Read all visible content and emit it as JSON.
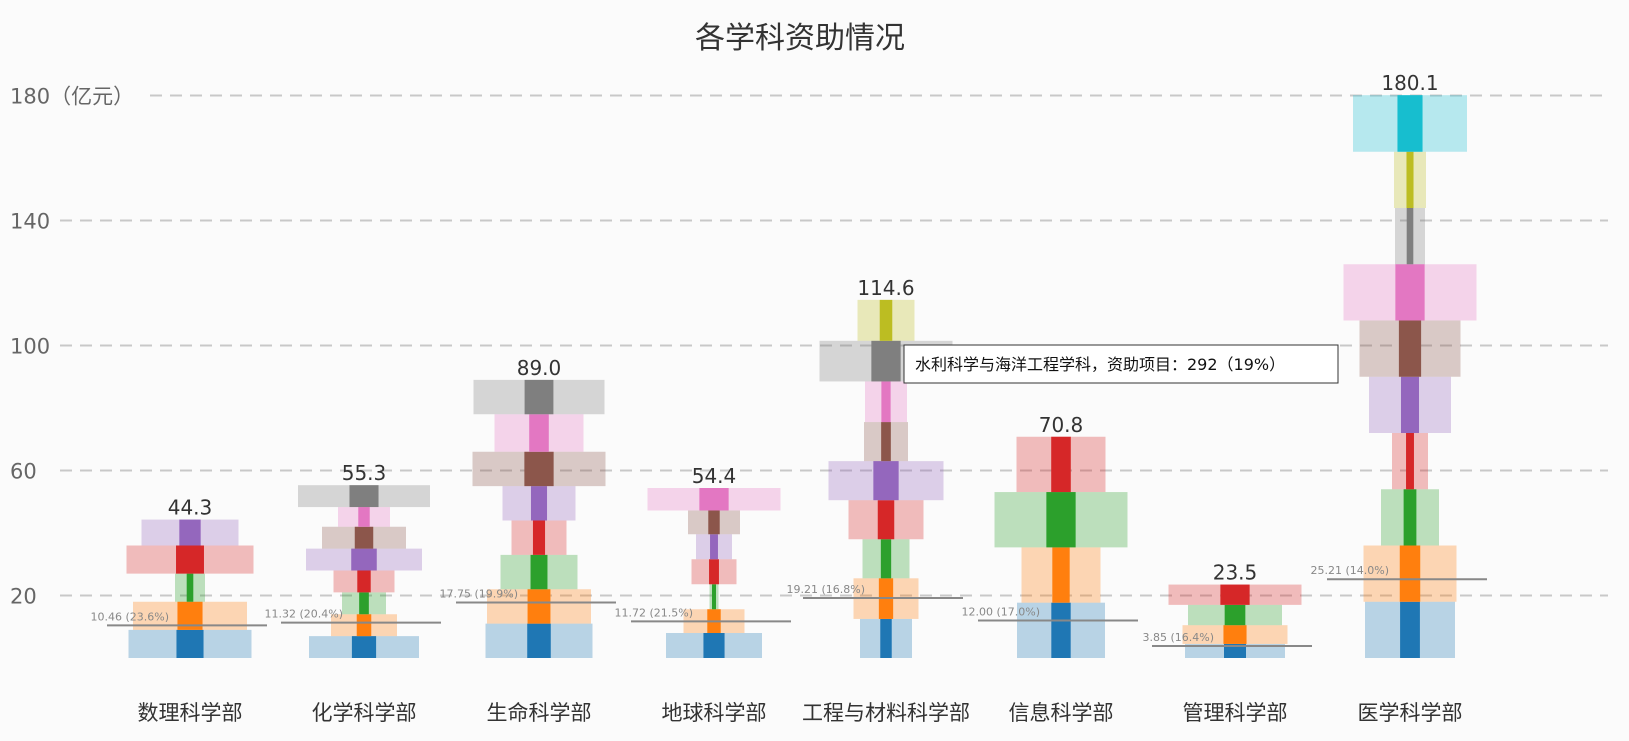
{
  "chart_data": {
    "type": "bar",
    "title": "各学科资助情况",
    "ylabel": "（亿元）",
    "ylim": [
      0,
      180
    ],
    "yticks": [
      20,
      60,
      100,
      140,
      180
    ],
    "grid": true,
    "categories": [
      "数理科学部",
      "化学科学部",
      "生命科学部",
      "地球科学部",
      "工程与材料科学部",
      "信息科学部",
      "管理科学部",
      "医学科学部"
    ],
    "totals": [
      "44.3",
      "55.3",
      "89.0",
      "54.4",
      "114.6",
      "70.8",
      "23.5",
      "180.1"
    ],
    "series_colors": [
      "#1f77b4",
      "#ff7f0e",
      "#2ca02c",
      "#d62728",
      "#9467bd",
      "#8c564b",
      "#e377c2",
      "#7f7f7f",
      "#bcbd22",
      "#17becf"
    ],
    "segments": [
      [
        9,
        9,
        9,
        9,
        8.3
      ],
      [
        7,
        7,
        7,
        7,
        7,
        7,
        6.3,
        7
      ],
      [
        11,
        11,
        11,
        11,
        11,
        11,
        12,
        11
      ],
      [
        8,
        7.6,
        8,
        8,
        8,
        7.6,
        7.2
      ],
      [
        12.5,
        13,
        12.5,
        12.5,
        12.5,
        12.5,
        13,
        13,
        13.1
      ],
      [
        17.7,
        17.7,
        17.7,
        17.7
      ],
      [
        4.5,
        6,
        6.5,
        6.5
      ],
      [
        18,
        18,
        18,
        18,
        18,
        18,
        18,
        18,
        18,
        18.1
      ]
    ],
    "segment_widths": [
      [
        123,
        114,
        30,
        127,
        97
      ],
      [
        110,
        66,
        44,
        61,
        116,
        84,
        52,
        132
      ],
      [
        107,
        104,
        77,
        55,
        73,
        133,
        89,
        131
      ],
      [
        96,
        61,
        9,
        45,
        36,
        52,
        133
      ],
      [
        52,
        65,
        47,
        75,
        115,
        44,
        42,
        133,
        57
      ],
      [
        88,
        79,
        133,
        89
      ],
      [
        100,
        105,
        94,
        133
      ],
      [
        90,
        93,
        58,
        36,
        82,
        101,
        133,
        30,
        32,
        114
      ]
    ],
    "thresholds": [
      "10.46 (23.6%)",
      "11.32 (20.4%)",
      "17.75 (19.9%)",
      "11.72 (21.5%)",
      "19.21 (16.8%)",
      "12.00 (17.0%)",
      "3.85 (16.4%)",
      "25.21 (14.0%)"
    ],
    "threshold_values": [
      10.46,
      11.32,
      17.75,
      11.72,
      19.21,
      12.0,
      3.85,
      25.21
    ],
    "tooltip": "水利科学与海洋工程学科，资助项目：292（19%）"
  }
}
